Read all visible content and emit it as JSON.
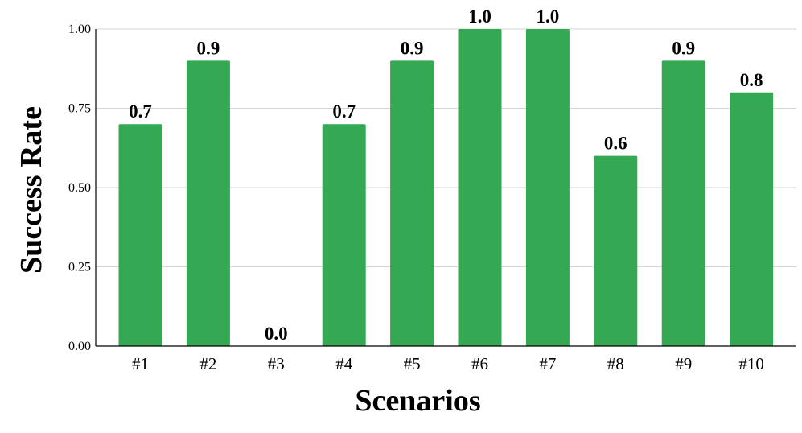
{
  "chart_data": {
    "type": "bar",
    "title": "",
    "xlabel": "Scenarios",
    "ylabel": "Success Rate",
    "categories": [
      "#1",
      "#2",
      "#3",
      "#4",
      "#5",
      "#6",
      "#7",
      "#8",
      "#9",
      "#10"
    ],
    "values": [
      0.7,
      0.9,
      0.0,
      0.7,
      0.9,
      1.0,
      1.0,
      0.6,
      0.9,
      0.8
    ],
    "data_labels": [
      "0.7",
      "0.9",
      "0.0",
      "0.7",
      "0.9",
      "1.0",
      "1.0",
      "0.6",
      "0.9",
      "0.8"
    ],
    "ylim": [
      0,
      1
    ],
    "yticks": [
      0.0,
      0.25,
      0.5,
      0.75,
      1.0
    ],
    "ytick_labels": [
      "0.00",
      "0.25",
      "0.50",
      "0.75",
      "1.00"
    ],
    "grid": "horizontal",
    "bar_color": "#34a853"
  }
}
